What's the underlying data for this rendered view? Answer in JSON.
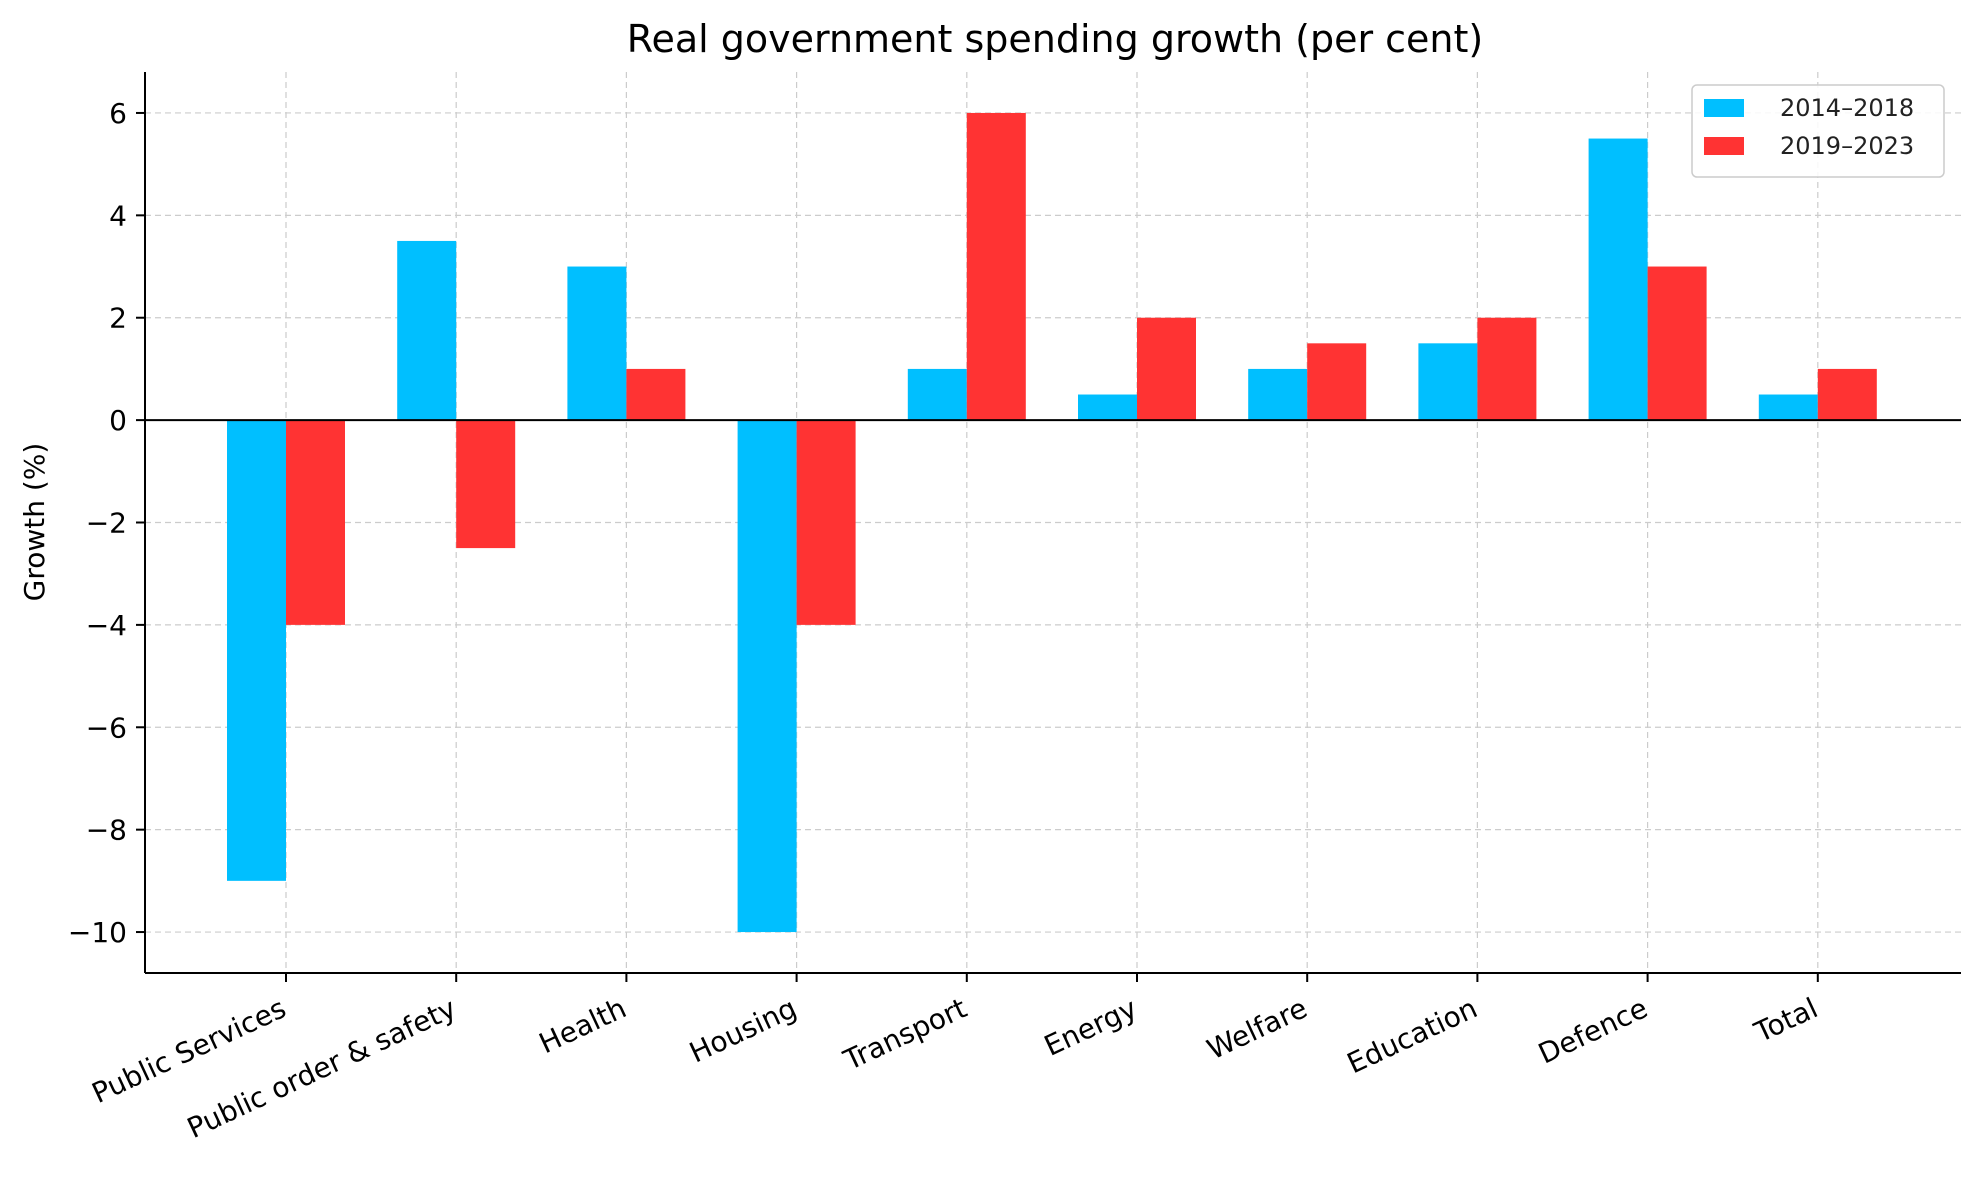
{
  "chart_data": {
    "type": "bar",
    "title": "Real government spending growth (per cent)",
    "xlabel": "",
    "ylabel": "Growth (%)",
    "categories": [
      "Public Services",
      "Public order & safety",
      "Health",
      "Housing",
      "Transport",
      "Energy",
      "Welfare",
      "Education",
      "Defence",
      "Total"
    ],
    "series": [
      {
        "name": "2014–2018",
        "color": "#00bfff",
        "values": [
          -9,
          3.5,
          3,
          -10,
          1,
          0.5,
          1,
          1.5,
          5.5,
          0.5
        ]
      },
      {
        "name": "2019–2023",
        "color": "#ff3333",
        "values": [
          -4,
          -2.5,
          1,
          -4,
          6,
          2,
          1.5,
          2,
          3,
          1
        ]
      }
    ],
    "ylim": [
      -10.8,
      6.8
    ],
    "yticks": [
      -10,
      -8,
      -6,
      -4,
      -2,
      0,
      2,
      4,
      6
    ],
    "ytick_labels": [
      "−10",
      "−8",
      "−6",
      "−4",
      "−2",
      "0",
      "2",
      "4",
      "6"
    ],
    "grid": true,
    "legend_position": "top-right"
  }
}
